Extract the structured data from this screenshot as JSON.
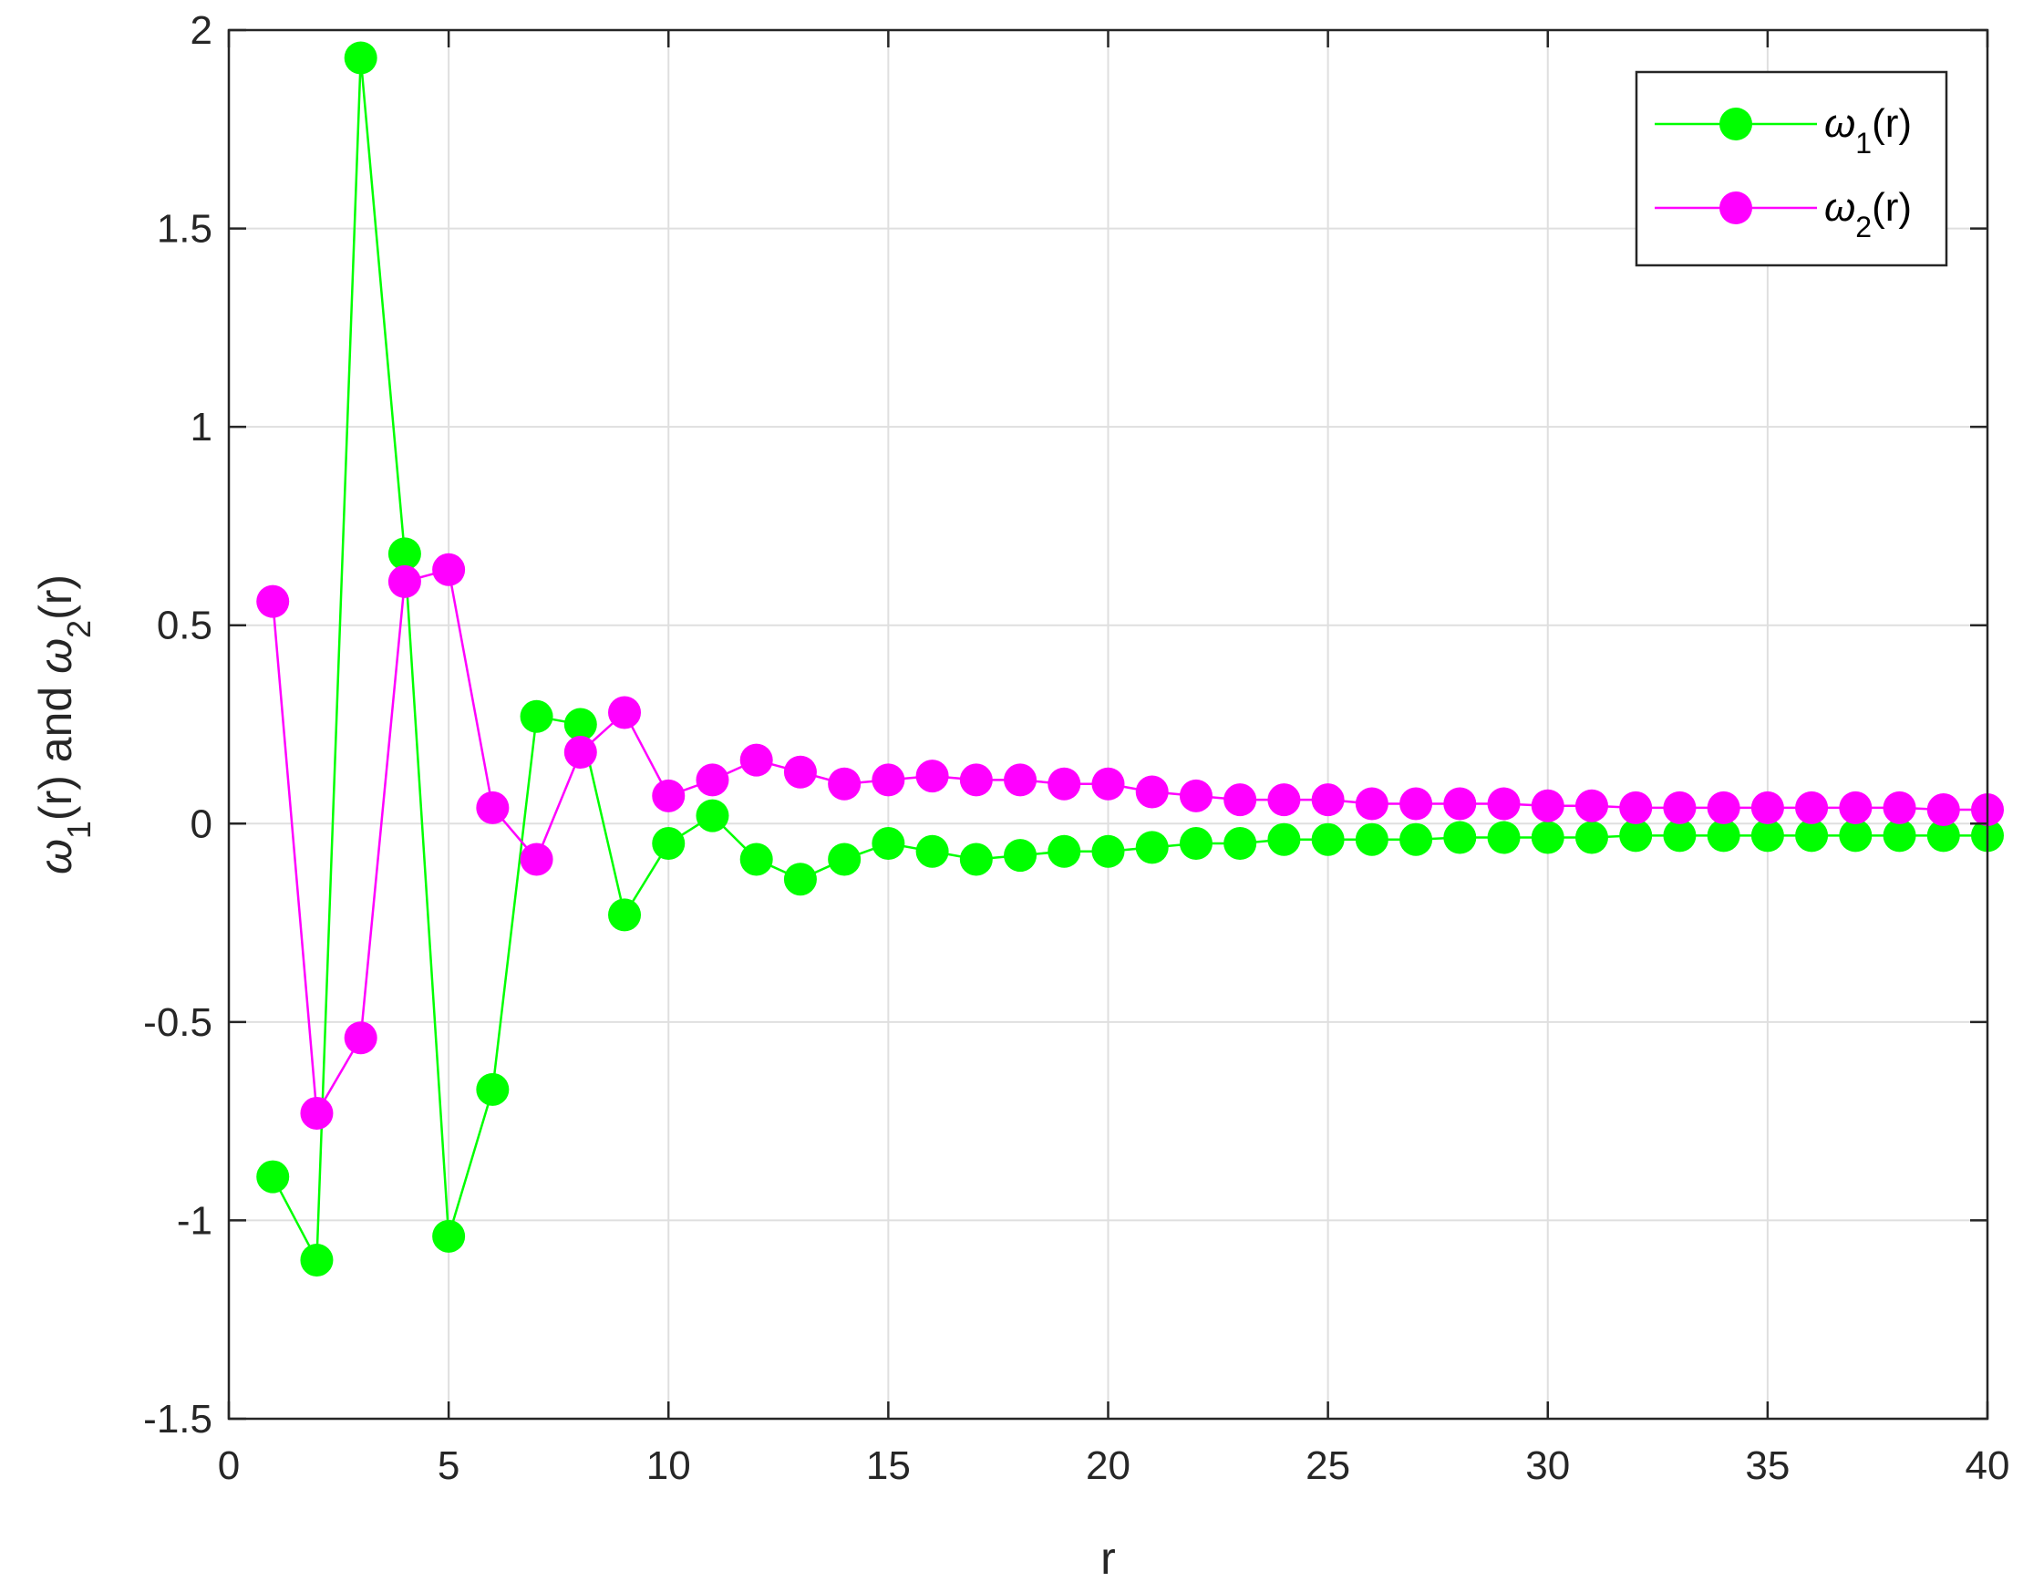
{
  "chart_data": {
    "type": "line",
    "xlabel": "r",
    "ylabel": {
      "parts": [
        {
          "text": "ω",
          "italic": true
        },
        {
          "text": "1",
          "sub": true
        },
        {
          "text": "(r) and "
        },
        {
          "text": "ω",
          "italic": true
        },
        {
          "text": "2",
          "sub": true
        },
        {
          "text": "(r)"
        }
      ]
    },
    "xlim": [
      0,
      40
    ],
    "ylim": [
      -1.5,
      2
    ],
    "xticks": [
      0,
      5,
      10,
      15,
      20,
      25,
      30,
      35,
      40
    ],
    "xtick_labels": [
      "0",
      "5",
      "10",
      "15",
      "20",
      "25",
      "30",
      "35",
      "40"
    ],
    "yticks": [
      -1.5,
      -1,
      -0.5,
      0,
      0.5,
      1,
      1.5,
      2
    ],
    "ytick_labels": [
      "-1.5",
      "-1",
      "-0.5",
      "0",
      "0.5",
      "1",
      "1.5",
      "2"
    ],
    "grid": true,
    "legend_position": "top-right",
    "x": [
      1,
      2,
      3,
      4,
      5,
      6,
      7,
      8,
      9,
      10,
      11,
      12,
      13,
      14,
      15,
      16,
      17,
      18,
      19,
      20,
      21,
      22,
      23,
      24,
      25,
      26,
      27,
      28,
      29,
      30,
      31,
      32,
      33,
      34,
      35,
      36,
      37,
      38,
      39,
      40
    ],
    "series": [
      {
        "name": "ω1(r)",
        "legend_parts": [
          {
            "text": "ω",
            "italic": true
          },
          {
            "text": "1",
            "sub": true
          },
          {
            "text": "(r)"
          }
        ],
        "color": "#00ff00",
        "values": [
          -0.89,
          -1.1,
          1.93,
          0.68,
          -1.04,
          -0.67,
          0.27,
          0.25,
          -0.23,
          -0.05,
          0.02,
          -0.09,
          -0.14,
          -0.09,
          -0.05,
          -0.07,
          -0.09,
          -0.08,
          -0.07,
          -0.07,
          -0.06,
          -0.05,
          -0.05,
          -0.04,
          -0.04,
          -0.04,
          -0.04,
          -0.035,
          -0.035,
          -0.035,
          -0.035,
          -0.03,
          -0.03,
          -0.03,
          -0.03,
          -0.03,
          -0.03,
          -0.03,
          -0.03,
          -0.03
        ]
      },
      {
        "name": "ω2(r)",
        "legend_parts": [
          {
            "text": "ω",
            "italic": true
          },
          {
            "text": "2",
            "sub": true
          },
          {
            "text": "(r)"
          }
        ],
        "color": "#ff00ff",
        "values": [
          0.56,
          -0.73,
          -0.54,
          0.61,
          0.64,
          0.04,
          -0.09,
          0.18,
          0.28,
          0.07,
          0.11,
          0.16,
          0.13,
          0.1,
          0.11,
          0.12,
          0.11,
          0.11,
          0.1,
          0.1,
          0.08,
          0.07,
          0.06,
          0.06,
          0.06,
          0.05,
          0.05,
          0.05,
          0.05,
          0.045,
          0.045,
          0.04,
          0.04,
          0.04,
          0.04,
          0.04,
          0.04,
          0.04,
          0.035,
          0.035
        ]
      }
    ]
  }
}
